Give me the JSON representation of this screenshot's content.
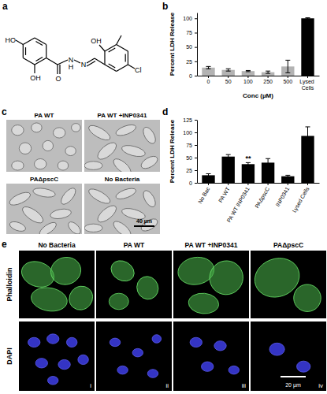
{
  "panel_labels": [
    "a",
    "b",
    "c",
    "d",
    "e"
  ],
  "compound": {
    "atoms": [
      "HO",
      "OH",
      "O",
      "N",
      "H",
      "N",
      "OH",
      "Cl"
    ]
  },
  "chart_data": [
    {
      "type": "bar",
      "y_label": "Percent LDH Release",
      "x_label": "Conc (µM)",
      "categories": [
        "0",
        "50",
        "100",
        "250",
        "500",
        "Lysed Cells"
      ],
      "values": [
        14,
        10,
        8,
        6,
        16,
        100
      ],
      "errors": [
        2,
        2,
        1,
        2,
        11,
        1
      ],
      "colors": [
        "#b3b3b3",
        "#b3b3b3",
        "#b3b3b3",
        "#b3b3b3",
        "#b3b3b3",
        "#000000"
      ],
      "ylim": [
        0,
        110
      ],
      "yticks": [
        0,
        25,
        50,
        75,
        100
      ]
    },
    {
      "type": "bar",
      "y_label": "Percent LDH Release",
      "categories": [
        "No Bac",
        "PA WT",
        "PA WT INP0341",
        "PAΔpscC",
        "INP0341",
        "Lysed Cells"
      ],
      "values": [
        15,
        52,
        37,
        40,
        13,
        93
      ],
      "errors": [
        3,
        4,
        3,
        8,
        2,
        18
      ],
      "color": "#000000",
      "ylim": [
        0,
        125
      ],
      "yticks": [
        0,
        25,
        50,
        75,
        100,
        125
      ],
      "annotations": [
        {
          "text": "**",
          "category": "PA WT INP0341"
        }
      ]
    }
  ],
  "micrographs": {
    "labels": [
      "PA WT",
      "PA WT +INP0341",
      "PAΔpscC",
      "No Bacteria"
    ],
    "scale_bar": "40 µm"
  },
  "fluorescence": {
    "columns": [
      "No Bacteria",
      "PA WT",
      "PA WT +INP0341",
      "PAΔpscC"
    ],
    "rows": [
      "Phalloidin",
      "DAPI"
    ],
    "numerals": [
      "i",
      "ii",
      "iii",
      "iv"
    ],
    "scale_bar": "20 µm"
  }
}
